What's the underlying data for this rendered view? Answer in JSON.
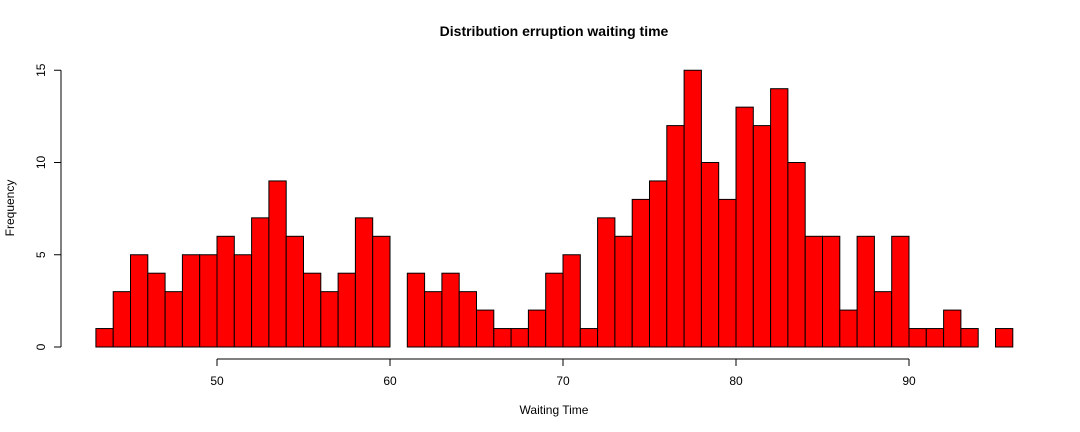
{
  "chart_data": {
    "type": "bar",
    "title": "Distribution erruption waiting time",
    "xlabel": "Waiting Time",
    "ylabel": "Frequency",
    "bar_color": "#ff0000",
    "bin_width": 1,
    "bin_start": 43,
    "xlim": [
      43,
      96
    ],
    "ylim": [
      0,
      15
    ],
    "x_ticks": [
      50,
      60,
      70,
      80,
      90
    ],
    "y_ticks": [
      0,
      5,
      10,
      15
    ],
    "values": [
      1,
      3,
      5,
      4,
      3,
      5,
      5,
      6,
      5,
      7,
      9,
      6,
      4,
      3,
      4,
      7,
      6,
      0,
      4,
      3,
      4,
      3,
      2,
      1,
      1,
      2,
      4,
      5,
      1,
      7,
      6,
      8,
      9,
      12,
      15,
      10,
      8,
      13,
      12,
      14,
      10,
      6,
      6,
      2,
      6,
      3,
      6,
      1,
      1,
      2,
      1,
      0,
      1
    ],
    "grid": false,
    "legend": "none"
  }
}
